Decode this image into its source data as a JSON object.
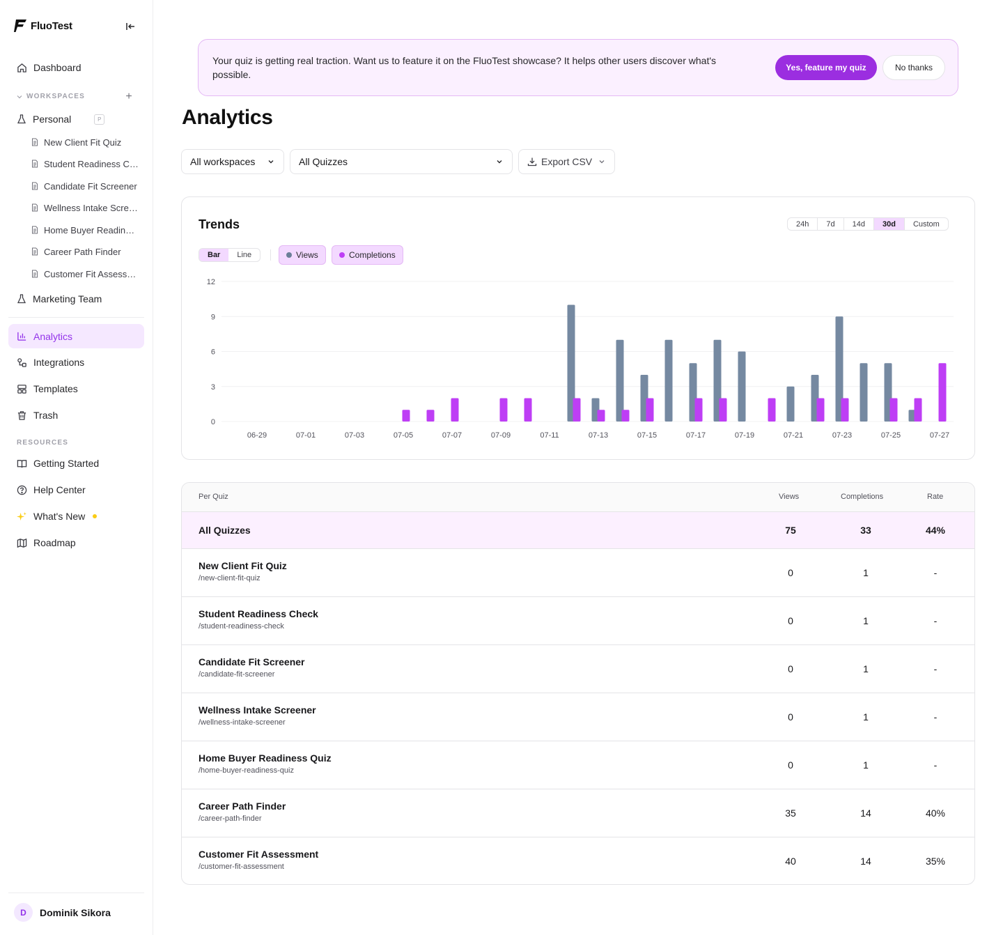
{
  "app": {
    "name": "FluoTest"
  },
  "sidebar": {
    "dashboard": "Dashboard",
    "workspaces_label": "WORKSPACES",
    "personal": {
      "name": "Personal",
      "badge": "P"
    },
    "quizzes": [
      "New Client Fit Quiz",
      "Student Readiness Check",
      "Candidate Fit Screener",
      "Wellness Intake Screener",
      "Home Buyer Readiness Quiz",
      "Career Path Finder",
      "Customer Fit Assessment"
    ],
    "marketing": "Marketing Team",
    "analytics": "Analytics",
    "integrations": "Integrations",
    "templates": "Templates",
    "trash": "Trash",
    "resources_label": "RESOURCES",
    "getting_started": "Getting Started",
    "help_center": "Help Center",
    "whats_new": "What's New",
    "roadmap": "Roadmap",
    "user": {
      "initial": "D",
      "name": "Dominik Sikora"
    }
  },
  "banner": {
    "text": "Your quiz is getting real traction. Want us to feature it on the FluoTest showcase? It helps other users discover what's possible.",
    "primary": "Yes, feature my quiz",
    "secondary": "No thanks"
  },
  "page_title": "Analytics",
  "filters": {
    "workspace": "All workspaces",
    "quiz": "All Quizzes",
    "export": "Export CSV"
  },
  "trends": {
    "title": "Trends",
    "ranges": [
      "24h",
      "7d",
      "14d",
      "30d",
      "Custom"
    ],
    "active_range": "30d",
    "types": [
      "Bar",
      "Line"
    ],
    "active_type": "Bar",
    "legend": [
      "Views",
      "Completions"
    ]
  },
  "colors": {
    "views": "#7589a1",
    "completions": "#be3ef5",
    "accent": "#9b2ee0"
  },
  "chart_data": {
    "type": "bar",
    "categories": [
      "06-29",
      "06-30",
      "07-01",
      "07-02",
      "07-03",
      "07-04",
      "07-05",
      "07-06",
      "07-07",
      "07-08",
      "07-09",
      "07-10",
      "07-11",
      "07-12",
      "07-13",
      "07-14",
      "07-15",
      "07-16",
      "07-17",
      "07-18",
      "07-19",
      "07-20",
      "07-21",
      "07-22",
      "07-23",
      "07-24",
      "07-25",
      "07-26",
      "07-27"
    ],
    "tick_labels": [
      "06-29",
      "07-01",
      "07-03",
      "07-05",
      "07-07",
      "07-09",
      "07-11",
      "07-13",
      "07-15",
      "07-17",
      "07-19",
      "07-21",
      "07-23",
      "07-25",
      "07-27"
    ],
    "series": [
      {
        "name": "Views",
        "values": [
          0,
          0,
          0,
          0,
          0,
          0,
          0,
          0,
          0,
          0,
          0,
          0,
          0,
          10,
          2,
          7,
          4,
          7,
          5,
          7,
          6,
          0,
          3,
          4,
          9,
          5,
          5,
          1,
          0
        ]
      },
      {
        "name": "Completions",
        "values": [
          0,
          0,
          0,
          0,
          0,
          0,
          1,
          1,
          2,
          0,
          2,
          2,
          0,
          2,
          1,
          1,
          2,
          0,
          2,
          2,
          0,
          2,
          0,
          2,
          2,
          0,
          2,
          2,
          5
        ]
      }
    ],
    "yticks": [
      0,
      3,
      6,
      9,
      12
    ],
    "ylim": [
      0,
      12
    ],
    "grid": true
  },
  "table": {
    "headers": {
      "quiz": "Per Quiz",
      "views": "Views",
      "completions": "Completions",
      "rate": "Rate"
    },
    "total": {
      "name": "All Quizzes",
      "views": "75",
      "completions": "33",
      "rate": "44%"
    },
    "rows": [
      {
        "name": "New Client Fit Quiz",
        "slug": "/new-client-fit-quiz",
        "views": "0",
        "completions": "1",
        "rate": "-"
      },
      {
        "name": "Student Readiness Check",
        "slug": "/student-readiness-check",
        "views": "0",
        "completions": "1",
        "rate": "-"
      },
      {
        "name": "Candidate Fit Screener",
        "slug": "/candidate-fit-screener",
        "views": "0",
        "completions": "1",
        "rate": "-"
      },
      {
        "name": "Wellness Intake Screener",
        "slug": "/wellness-intake-screener",
        "views": "0",
        "completions": "1",
        "rate": "-"
      },
      {
        "name": "Home Buyer Readiness Quiz",
        "slug": "/home-buyer-readiness-quiz",
        "views": "0",
        "completions": "1",
        "rate": "-"
      },
      {
        "name": "Career Path Finder",
        "slug": "/career-path-finder",
        "views": "35",
        "completions": "14",
        "rate": "40%"
      },
      {
        "name": "Customer Fit Assessment",
        "slug": "/customer-fit-assessment",
        "views": "40",
        "completions": "14",
        "rate": "35%"
      }
    ]
  }
}
